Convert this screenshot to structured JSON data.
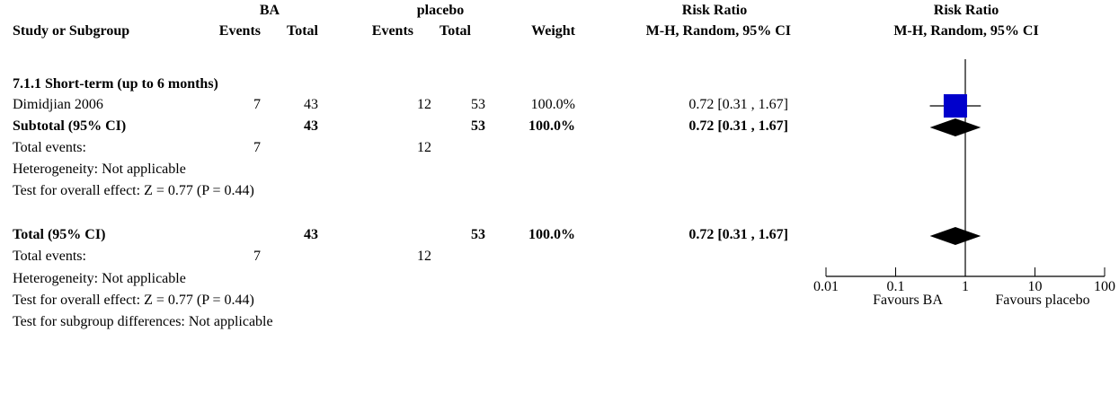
{
  "header": {
    "group1": "BA",
    "group2": "placebo",
    "rr_group": "Risk Ratio",
    "plot_group": "Risk Ratio",
    "study": "Study or Subgroup",
    "events1": "Events",
    "total1": "Total",
    "events2": "Events",
    "total2": "Total",
    "weight": "Weight",
    "rr_method": "M-H, Random, 95% CI",
    "plot_method": "M-H, Random, 95% CI"
  },
  "subgroup": {
    "title": "7.1.1 Short-term (up to 6 months)",
    "study": {
      "name": "Dimidjian 2006",
      "events1": "7",
      "total1": "43",
      "events2": "12",
      "total2": "53",
      "weight": "100.0%",
      "rr": "0.72 [0.31 , 1.67]"
    },
    "subtotal": {
      "label": "Subtotal (95% CI)",
      "total1": "43",
      "total2": "53",
      "weight": "100.0%",
      "rr": "0.72 [0.31 , 1.67]"
    },
    "events": {
      "label": "Total events:",
      "events1": "7",
      "events2": "12"
    },
    "heterogeneity": "Heterogeneity: Not applicable",
    "overall": "Test for overall effect: Z = 0.77 (P = 0.44)"
  },
  "total": {
    "label": "Total (95% CI)",
    "total1": "43",
    "total2": "53",
    "weight": "100.0%",
    "rr": "0.72 [0.31 , 1.67]",
    "events": {
      "label": "Total events:",
      "events1": "7",
      "events2": "12"
    },
    "heterogeneity": "Heterogeneity: Not applicable",
    "overall": "Test for overall effect: Z = 0.77 (P = 0.44)",
    "subgroup_diff": "Test for subgroup differences: Not applicable"
  },
  "axis": {
    "favours_left": "Favours BA",
    "favours_right": "Favours placebo"
  },
  "colors": {
    "study_marker": "#0000cc",
    "diamond": "#000000"
  },
  "chart_data": {
    "type": "forest",
    "scale": "log",
    "xlim": [
      0.01,
      100
    ],
    "ticks": [
      0.01,
      0.1,
      1,
      10,
      100
    ],
    "tick_labels": [
      "0.01",
      "0.1",
      "1",
      "10",
      "100"
    ],
    "studies": [
      {
        "name": "Dimidjian 2006",
        "rr": 0.72,
        "ci": [
          0.31,
          1.67
        ],
        "weight": 100.0
      }
    ],
    "subtotal": {
      "rr": 0.72,
      "ci": [
        0.31,
        1.67
      ]
    },
    "total": {
      "rr": 0.72,
      "ci": [
        0.31,
        1.67
      ]
    }
  }
}
